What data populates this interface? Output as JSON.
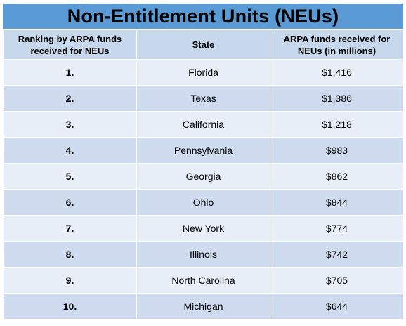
{
  "title": "Non-Entitlement Units (NEUs)",
  "headers": {
    "rank": "Ranking by ARPA funds received for NEUs",
    "state": "State",
    "funds": "ARPA funds received for NEUs (in millions)"
  },
  "rows": [
    {
      "rank": "1.",
      "state": "Florida",
      "funds": "$1,416"
    },
    {
      "rank": "2.",
      "state": "Texas",
      "funds": "$1,386"
    },
    {
      "rank": "3.",
      "state": "California",
      "funds": "$1,218"
    },
    {
      "rank": "4.",
      "state": "Pennsylvania",
      "funds": "$983"
    },
    {
      "rank": "5.",
      "state": "Georgia",
      "funds": "$862"
    },
    {
      "rank": "6.",
      "state": "Ohio",
      "funds": "$844"
    },
    {
      "rank": "7.",
      "state": "New York",
      "funds": "$774"
    },
    {
      "rank": "8.",
      "state": "Illinois",
      "funds": "$742"
    },
    {
      "rank": "9.",
      "state": "North Carolina",
      "funds": "$705"
    },
    {
      "rank": "10.",
      "state": "Michigan",
      "funds": "$644"
    }
  ],
  "colors": {
    "title_bar": "#5b9bd5",
    "header_row": "#c7d7ec",
    "row_light": "#e8eef7",
    "row_dark": "#cfdcef"
  }
}
